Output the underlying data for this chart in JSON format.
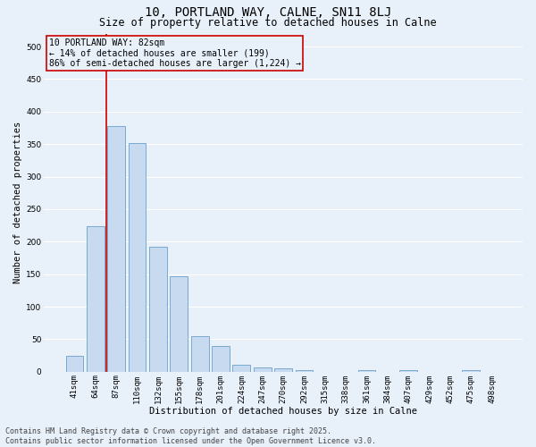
{
  "title": "10, PORTLAND WAY, CALNE, SN11 8LJ",
  "subtitle": "Size of property relative to detached houses in Calne",
  "xlabel": "Distribution of detached houses by size in Calne",
  "ylabel": "Number of detached properties",
  "bar_color": "#c8daf0",
  "bar_edge_color": "#7aaad0",
  "background_color": "#e8f0fa",
  "grid_color": "#ffffff",
  "categories": [
    "41sqm",
    "64sqm",
    "87sqm",
    "110sqm",
    "132sqm",
    "155sqm",
    "178sqm",
    "201sqm",
    "224sqm",
    "247sqm",
    "270sqm",
    "292sqm",
    "315sqm",
    "338sqm",
    "361sqm",
    "384sqm",
    "407sqm",
    "429sqm",
    "452sqm",
    "475sqm",
    "498sqm"
  ],
  "values": [
    25,
    224,
    378,
    352,
    192,
    147,
    55,
    40,
    11,
    7,
    5,
    2,
    0,
    0,
    3,
    0,
    2,
    0,
    0,
    2,
    0
  ],
  "ylim": [
    0,
    520
  ],
  "yticks": [
    0,
    50,
    100,
    150,
    200,
    250,
    300,
    350,
    400,
    450,
    500
  ],
  "property_line_color": "#cc0000",
  "annotation_text": "10 PORTLAND WAY: 82sqm\n← 14% of detached houses are smaller (199)\n86% of semi-detached houses are larger (1,224) →",
  "annotation_box_color": "#cc0000",
  "footer_line1": "Contains HM Land Registry data © Crown copyright and database right 2025.",
  "footer_line2": "Contains public sector information licensed under the Open Government Licence v3.0.",
  "title_fontsize": 10,
  "subtitle_fontsize": 8.5,
  "axis_label_fontsize": 7.5,
  "tick_fontsize": 6.5,
  "annotation_fontsize": 7,
  "footer_fontsize": 6
}
